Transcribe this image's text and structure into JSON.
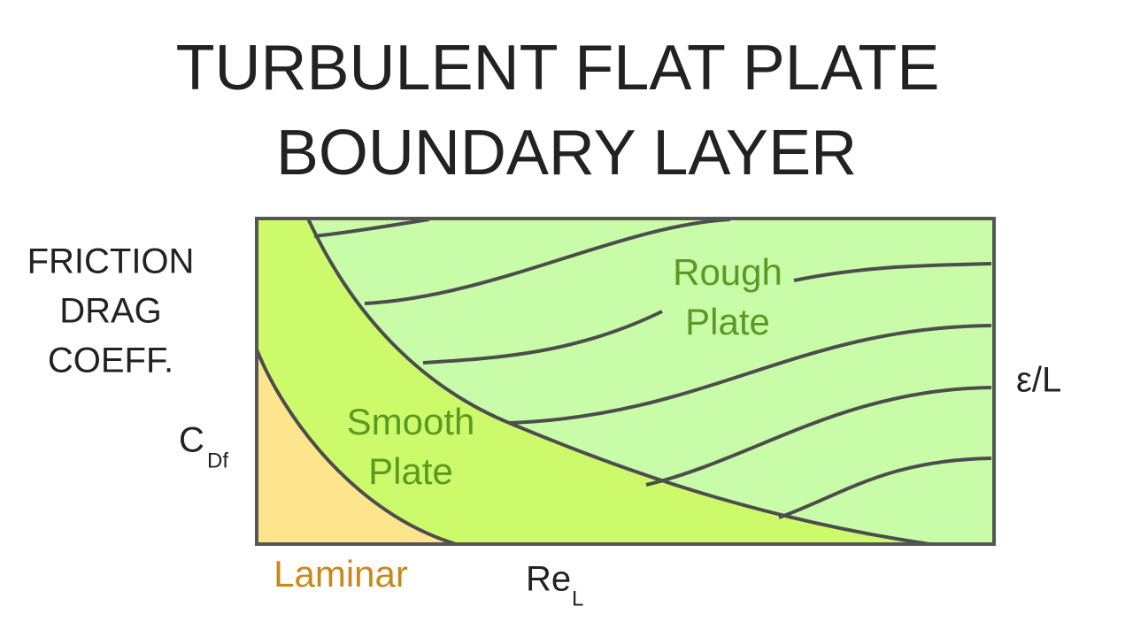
{
  "title": [
    "TURBULENT FLAT PLATE",
    "BOUNDARY LAYER"
  ],
  "y_axis": {
    "label": [
      "FRICTION",
      "DRAG",
      "COEFF."
    ],
    "symbol": "C",
    "subscript": "Df"
  },
  "x_axis": {
    "symbol": "Re",
    "subscript": "L"
  },
  "right_label": "ε/L",
  "regions": {
    "rough": [
      "Rough",
      "Plate"
    ],
    "smooth": [
      "Smooth",
      "Plate"
    ],
    "laminar": "Laminar"
  }
}
